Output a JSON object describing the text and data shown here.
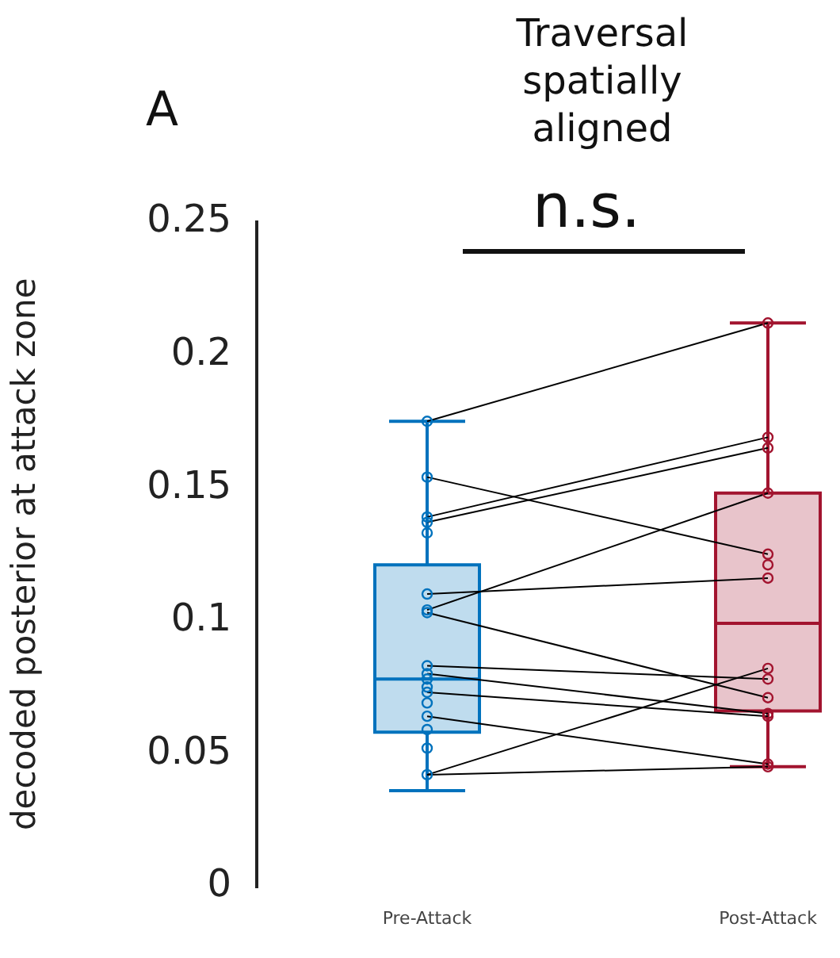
{
  "chart_data": {
    "type": "box",
    "title": "Traversal spatially aligned",
    "ylabel": "decoded posterior at attack zone",
    "annotations": [
      "A",
      "n.s."
    ],
    "categories": [
      "Pre-Attack",
      "Post-Attack"
    ],
    "colors": [
      "#0072bd",
      "#a2142f"
    ],
    "boxes": [
      {
        "low": 0.036,
        "q1": 0.058,
        "median": 0.078,
        "q3": 0.121,
        "high": 0.175
      },
      {
        "low": 0.045,
        "q1": 0.066,
        "median": 0.099,
        "q3": 0.148,
        "high": 0.212
      }
    ],
    "series": [
      {
        "type": "scatter",
        "color": "#0072bd",
        "x": [
          "Pre-Attack",
          "Pre-Attack",
          "Pre-Attack",
          "Pre-Attack",
          "Pre-Attack",
          "Pre-Attack",
          "Pre-Attack",
          "Pre-Attack",
          "Pre-Attack",
          "Pre-Attack",
          "Pre-Attack",
          "Pre-Attack",
          "Pre-Attack",
          "Pre-Attack",
          "Pre-Attack",
          "Pre-Attack",
          "Pre-Attack",
          "Pre-Attack"
        ],
        "values": [
          0.175,
          0.154,
          0.139,
          0.137,
          0.133,
          0.11,
          0.104,
          0.103,
          0.083,
          0.08,
          0.078,
          0.075,
          0.073,
          0.069,
          0.064,
          0.059,
          0.052,
          0.042
        ]
      },
      {
        "type": "scatter",
        "color": "#a2142f",
        "x": [
          "Post-Attack",
          "Post-Attack",
          "Post-Attack",
          "Post-Attack",
          "Post-Attack",
          "Post-Attack",
          "Post-Attack",
          "Post-Attack",
          "Post-Attack",
          "Post-Attack",
          "Post-Attack",
          "Post-Attack",
          "Post-Attack",
          "Post-Attack"
        ],
        "values": [
          0.212,
          0.169,
          0.165,
          0.148,
          0.125,
          0.121,
          0.116,
          0.082,
          0.078,
          0.071,
          0.065,
          0.064,
          0.046,
          0.045
        ]
      },
      {
        "type": "line",
        "color": "#000000",
        "marker": "none",
        "values": [
          0.175,
          0.212
        ]
      },
      {
        "type": "line",
        "color": "#000000",
        "marker": "none",
        "values": [
          0.154,
          0.125
        ]
      },
      {
        "type": "line",
        "color": "#000000",
        "marker": "none",
        "values": [
          0.139,
          0.169
        ]
      },
      {
        "type": "line",
        "color": "#000000",
        "marker": "none",
        "values": [
          0.137,
          0.165
        ]
      },
      {
        "type": "line",
        "color": "#000000",
        "marker": "none",
        "values": [
          0.11,
          0.116
        ]
      },
      {
        "type": "line",
        "color": "#000000",
        "marker": "none",
        "values": [
          0.104,
          0.148
        ]
      },
      {
        "type": "line",
        "color": "#000000",
        "marker": "none",
        "values": [
          0.103,
          0.071
        ]
      },
      {
        "type": "line",
        "color": "#000000",
        "marker": "none",
        "values": [
          0.083,
          0.078
        ]
      },
      {
        "type": "line",
        "color": "#000000",
        "marker": "none",
        "values": [
          0.08,
          0.065
        ]
      },
      {
        "type": "line",
        "color": "#000000",
        "marker": "none",
        "values": [
          0.073,
          0.064
        ]
      },
      {
        "type": "line",
        "color": "#000000",
        "marker": "none",
        "values": [
          0.064,
          0.046
        ]
      },
      {
        "type": "line",
        "color": "#000000",
        "marker": "none",
        "values": [
          0.042,
          0.082
        ]
      },
      {
        "type": "line",
        "color": "#000000",
        "marker": "none",
        "values": [
          0.042,
          0.045
        ]
      }
    ],
    "ylim": [
      0,
      0.25
    ],
    "yticks": [
      0,
      0.05,
      0.1,
      0.15,
      0.2,
      0.25
    ],
    "grid": false,
    "legend": false,
    "marker": "circle"
  }
}
